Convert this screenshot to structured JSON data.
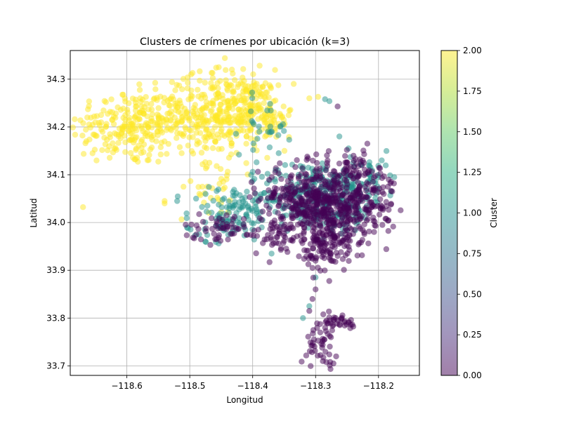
{
  "chart_data": {
    "type": "scatter",
    "title": "Clusters de crímenes por ubicación (k=3)",
    "xlabel": "Longitud",
    "ylabel": "Latitud",
    "xlim": [
      -118.69,
      -118.135
    ],
    "ylim": [
      33.68,
      34.36
    ],
    "xticks": [
      -118.6,
      -118.5,
      -118.4,
      -118.3,
      -118.2
    ],
    "xtick_labels": [
      "−118.6",
      "−118.5",
      "−118.4",
      "−118.3",
      "−118.2"
    ],
    "yticks": [
      33.7,
      33.8,
      33.9,
      34.0,
      34.1,
      34.2,
      34.3
    ],
    "ytick_labels": [
      "33.7",
      "33.8",
      "33.9",
      "34.0",
      "34.1",
      "34.2",
      "34.3"
    ],
    "grid": true,
    "marker_opacity": 0.5,
    "colorbar": {
      "label": "Cluster",
      "range": [
        0.0,
        2.0
      ],
      "ticks": [
        0.0,
        0.25,
        0.5,
        0.75,
        1.0,
        1.25,
        1.5,
        1.75,
        2.0
      ],
      "tick_labels": [
        "0.00",
        "0.25",
        "0.50",
        "0.75",
        "1.00",
        "1.25",
        "1.50",
        "1.75",
        "2.00"
      ],
      "colormap": "viridis"
    },
    "colors": {
      "cluster_0": "#440154",
      "cluster_1": "#21918c",
      "cluster_2": "#fde725"
    },
    "regions": [
      {
        "cluster": 2,
        "lon": -118.6,
        "lat": 34.2,
        "slon": 0.045,
        "slat": 0.04,
        "n": 190
      },
      {
        "cluster": 2,
        "lon": -118.52,
        "lat": 34.22,
        "slon": 0.04,
        "slat": 0.04,
        "n": 170
      },
      {
        "cluster": 2,
        "lon": -118.44,
        "lat": 34.23,
        "slon": 0.035,
        "slat": 0.045,
        "n": 230
      },
      {
        "cluster": 2,
        "lon": -118.4,
        "lat": 34.24,
        "slon": 0.02,
        "slat": 0.03,
        "n": 90
      },
      {
        "cluster": 2,
        "lon": -118.37,
        "lat": 34.21,
        "slon": 0.015,
        "slat": 0.02,
        "n": 35
      },
      {
        "cluster": 2,
        "lon": -118.46,
        "lat": 34.07,
        "slon": 0.03,
        "slat": 0.03,
        "n": 30
      },
      {
        "cluster": 1,
        "lon": -118.38,
        "lat": 34.2,
        "slon": 0.02,
        "slat": 0.03,
        "n": 30
      },
      {
        "cluster": 1,
        "lon": -118.43,
        "lat": 34.03,
        "slon": 0.035,
        "slat": 0.025,
        "n": 80
      },
      {
        "cluster": 1,
        "lon": -118.32,
        "lat": 34.06,
        "slon": 0.035,
        "slat": 0.035,
        "n": 140
      },
      {
        "cluster": 1,
        "lon": -118.27,
        "lat": 34.04,
        "slon": 0.03,
        "slat": 0.035,
        "n": 130
      },
      {
        "cluster": 1,
        "lon": -118.23,
        "lat": 34.09,
        "slon": 0.03,
        "slat": 0.03,
        "n": 80
      },
      {
        "cluster": 1,
        "lon": -118.45,
        "lat": 33.99,
        "slon": 0.03,
        "slat": 0.015,
        "n": 40
      },
      {
        "cluster": 0,
        "lon": -118.32,
        "lat": 34.05,
        "slon": 0.035,
        "slat": 0.035,
        "n": 260
      },
      {
        "cluster": 0,
        "lon": -118.27,
        "lat": 34.03,
        "slon": 0.03,
        "slat": 0.04,
        "n": 260
      },
      {
        "cluster": 0,
        "lon": -118.22,
        "lat": 34.05,
        "slon": 0.025,
        "slat": 0.04,
        "n": 120
      },
      {
        "cluster": 0,
        "lon": -118.28,
        "lat": 33.95,
        "slon": 0.02,
        "slat": 0.025,
        "n": 110
      },
      {
        "cluster": 0,
        "lon": -118.44,
        "lat": 33.99,
        "slon": 0.035,
        "slat": 0.015,
        "n": 60
      },
      {
        "cluster": 0,
        "lon": -118.36,
        "lat": 33.97,
        "slon": 0.02,
        "slat": 0.02,
        "n": 40
      },
      {
        "cluster": 0,
        "lon": -118.27,
        "lat": 33.79,
        "slon": 0.02,
        "slat": 0.01,
        "n": 40
      },
      {
        "cluster": 0,
        "lon": -118.29,
        "lat": 33.74,
        "slon": 0.012,
        "slat": 0.018,
        "n": 40
      },
      {
        "cluster": 0,
        "lon": -118.24,
        "lat": 34.12,
        "slon": 0.025,
        "slat": 0.02,
        "n": 40
      }
    ],
    "points": [
      {
        "cluster": 0,
        "lon": -118.265,
        "lat": 34.243
      },
      {
        "cluster": 1,
        "lon": -118.278,
        "lat": 34.254
      },
      {
        "cluster": 1,
        "lon": -118.285,
        "lat": 34.258
      },
      {
        "cluster": 2,
        "lon": -118.296,
        "lat": 34.263
      },
      {
        "cluster": 2,
        "lon": -118.31,
        "lat": 34.26
      },
      {
        "cluster": 2,
        "lon": -118.66,
        "lat": 34.205
      },
      {
        "cluster": 2,
        "lon": -118.54,
        "lat": 34.045
      },
      {
        "cluster": 1,
        "lon": -118.52,
        "lat": 34.045
      },
      {
        "cluster": 1,
        "lon": -118.49,
        "lat": 34.05
      },
      {
        "cluster": 2,
        "lon": -118.51,
        "lat": 34.075
      },
      {
        "cluster": 1,
        "lon": -118.37,
        "lat": 33.935
      },
      {
        "cluster": 0,
        "lon": -118.3,
        "lat": 33.86
      },
      {
        "cluster": 1,
        "lon": -118.3,
        "lat": 33.885
      },
      {
        "cluster": 0,
        "lon": -118.305,
        "lat": 33.84
      },
      {
        "cluster": 1,
        "lon": -118.31,
        "lat": 33.825
      },
      {
        "cluster": 0,
        "lon": -118.31,
        "lat": 33.815
      },
      {
        "cluster": 1,
        "lon": -118.32,
        "lat": 33.8
      },
      {
        "cluster": 0,
        "lon": -118.305,
        "lat": 33.905
      },
      {
        "cluster": 0,
        "lon": -118.3,
        "lat": 33.92
      },
      {
        "cluster": 1,
        "lon": -118.175,
        "lat": 34.095
      },
      {
        "cluster": 0,
        "lon": -118.18,
        "lat": 34.085
      },
      {
        "cluster": 1,
        "lon": -118.18,
        "lat": 34.065
      },
      {
        "cluster": 0,
        "lon": -118.185,
        "lat": 34.075
      },
      {
        "cluster": 2,
        "lon": -118.54,
        "lat": 34.04
      },
      {
        "cluster": 2,
        "lon": -118.48,
        "lat": 34.075
      }
    ]
  }
}
